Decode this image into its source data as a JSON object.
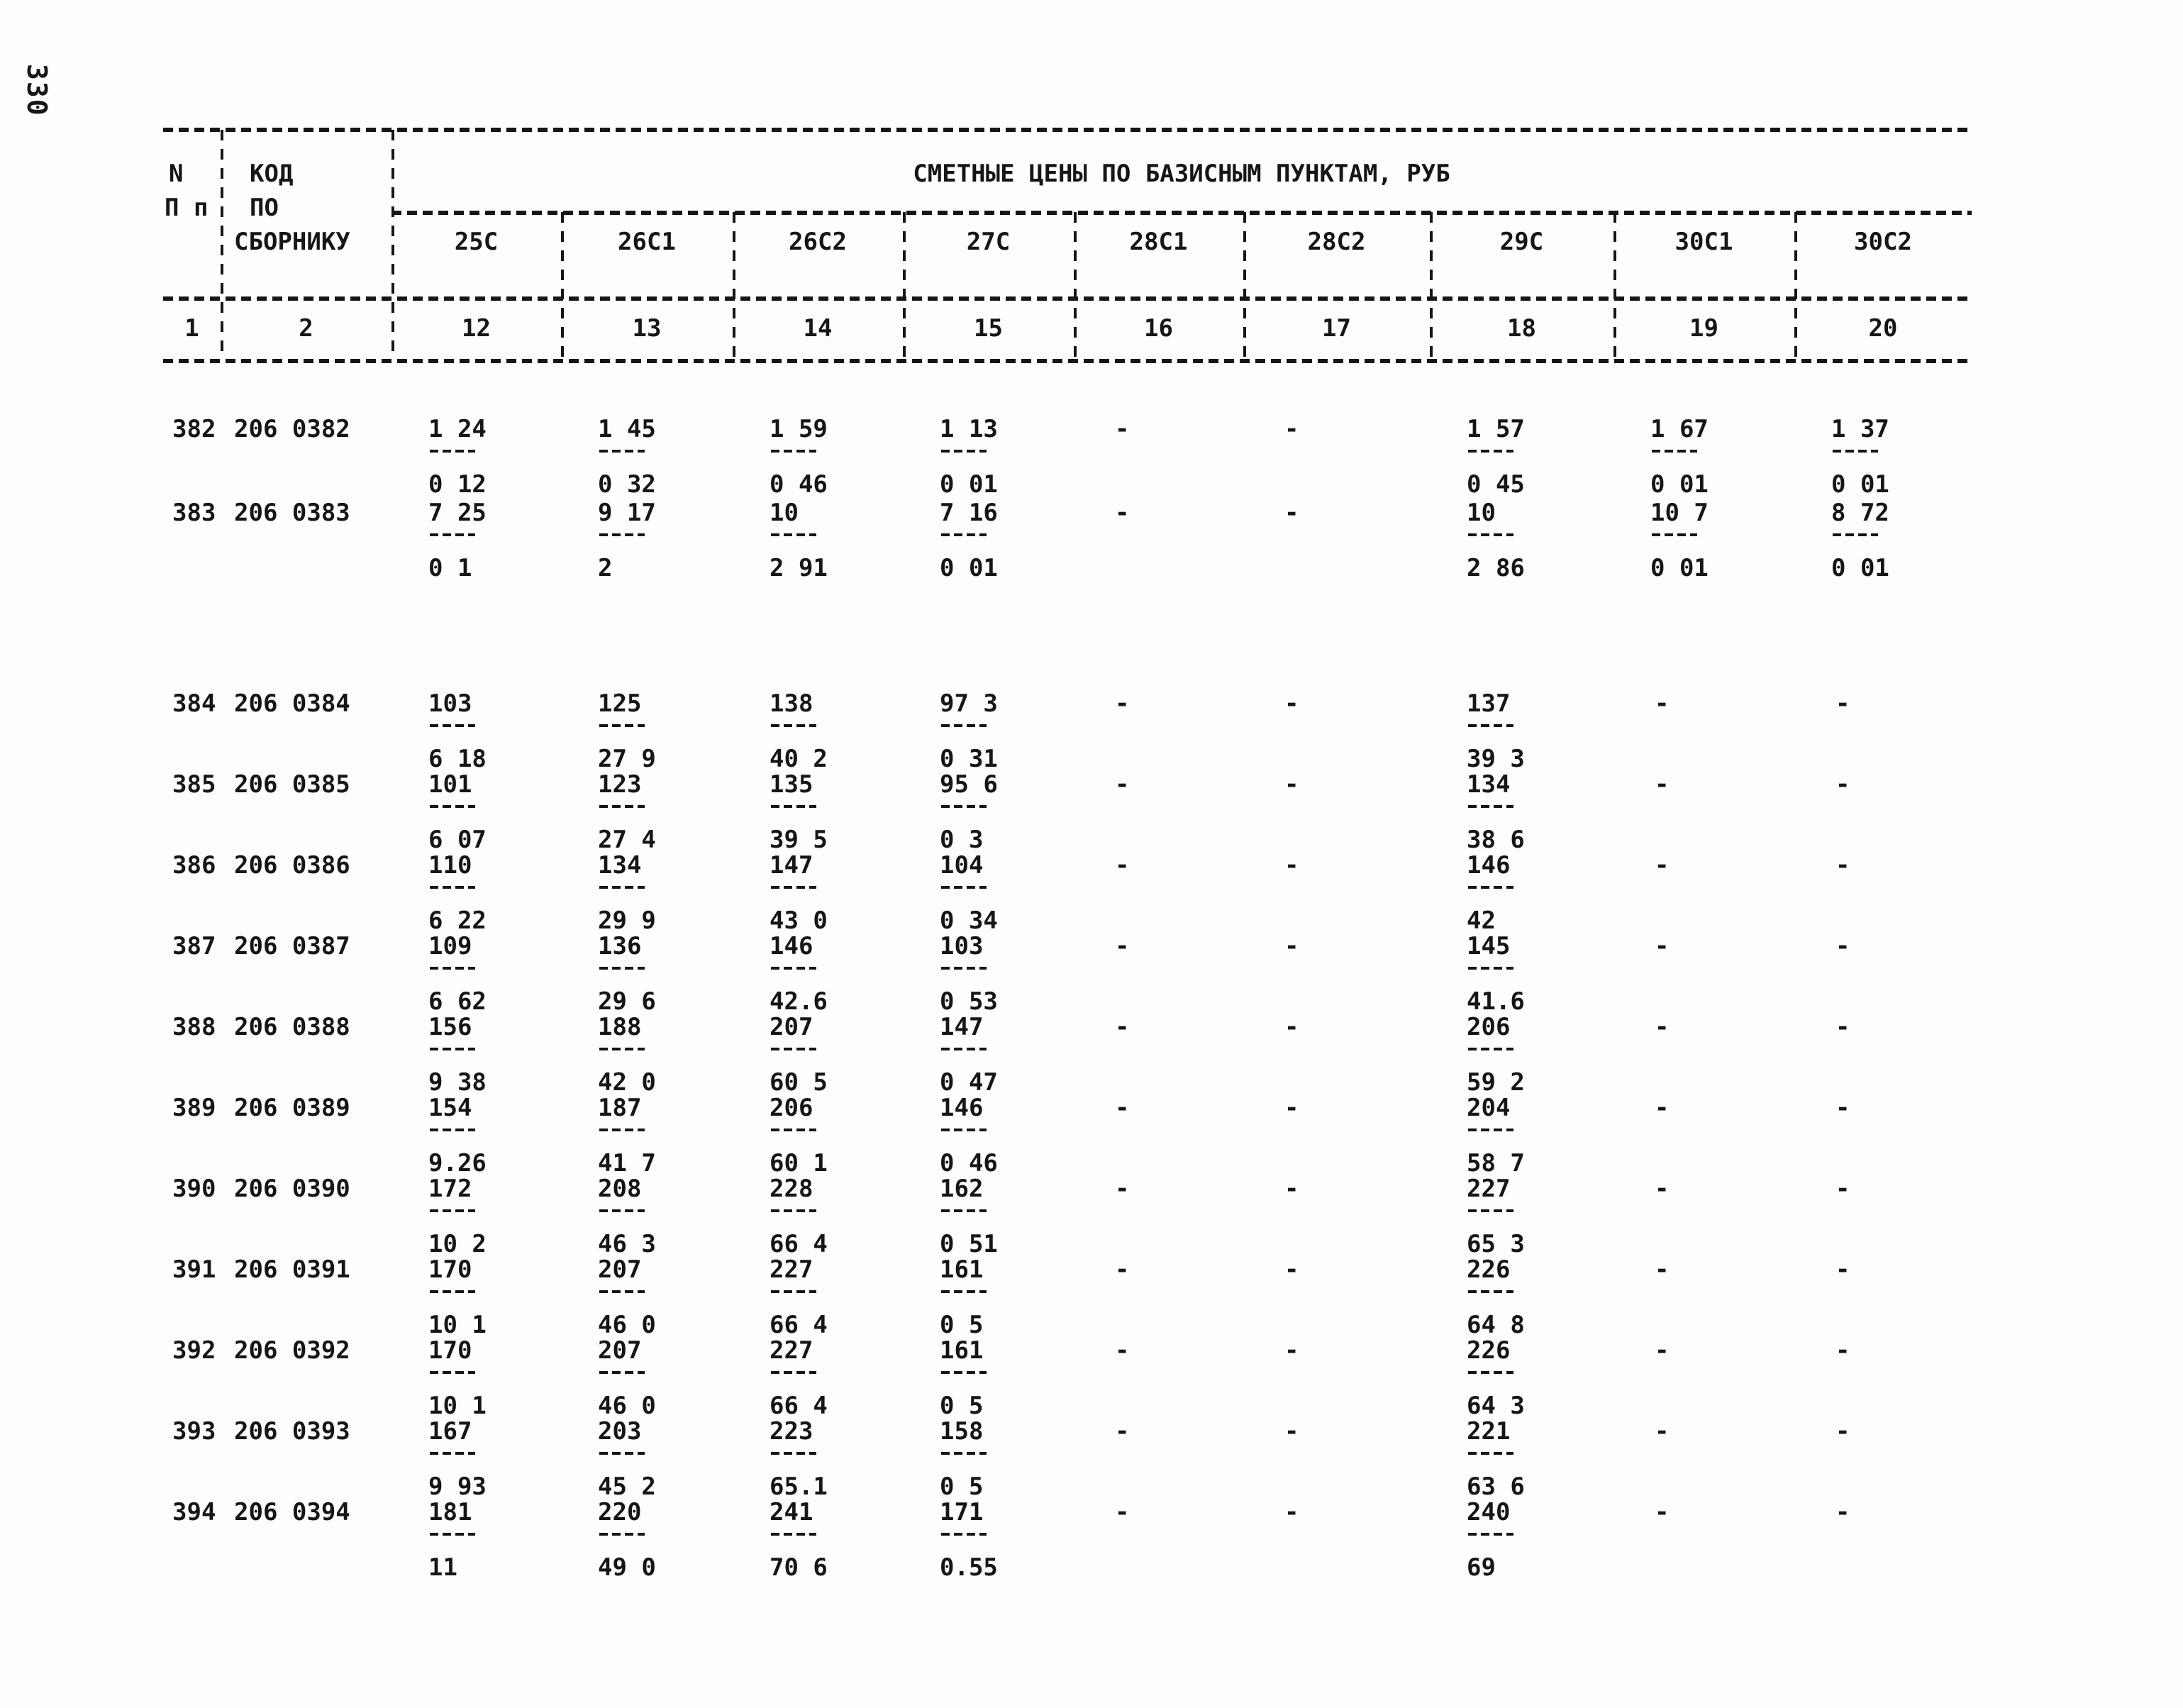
{
  "page": {
    "number": "330",
    "ink": "#161616",
    "paper": "#fdfdfb"
  },
  "table": {
    "title": "СМЕТНЫЕ ЦЕНЫ ПО БАЗИСНЫМ ПУНКТАМ, РУБ",
    "col1_header": {
      "line1": "N",
      "line2": "П п"
    },
    "col2_header": [
      "КОД",
      "ПО",
      "СБОРНИКУ"
    ],
    "column_codes": [
      "25C",
      "26C1",
      "26C2",
      "27C",
      "28C1",
      "28C2",
      "29C",
      "30C1",
      "30C2"
    ],
    "column_numbers": [
      "1",
      "2",
      "12",
      "13",
      "14",
      "15",
      "16",
      "17",
      "18",
      "19",
      "20"
    ],
    "missing_value_mark": "-",
    "rows": [
      {
        "num": "382",
        "code": "206 0382",
        "cells": [
          {
            "top": "1 24",
            "bottom": "0 12"
          },
          {
            "top": "1 45",
            "bottom": "0 32"
          },
          {
            "top": "1 59",
            "bottom": "0 46"
          },
          {
            "top": "1 13",
            "bottom": "0 01"
          },
          {
            "dash": true
          },
          {
            "dash": true
          },
          {
            "top": "1 57",
            "bottom": "0 45"
          },
          {
            "top": "1 67",
            "bottom": "0 01"
          },
          {
            "top": "1 37",
            "bottom": "0 01"
          }
        ]
      },
      {
        "num": "383",
        "code": "206 0383",
        "cells": [
          {
            "top": "7 25",
            "bottom": "0 1"
          },
          {
            "top": "9 17",
            "bottom": "2"
          },
          {
            "top": "10",
            "bottom": "2 91"
          },
          {
            "top": "7 16",
            "bottom": "0 01"
          },
          {
            "dash": true
          },
          {
            "dash": true
          },
          {
            "top": "10",
            "bottom": "2 86"
          },
          {
            "top": "10 7",
            "bottom": "0 01"
          },
          {
            "top": "8 72",
            "bottom": "0 01"
          }
        ]
      },
      {
        "num": "384",
        "code": "206 0384",
        "cells": [
          {
            "top": "103",
            "bottom": "6 18"
          },
          {
            "top": "125",
            "bottom": "27 9"
          },
          {
            "top": "138",
            "bottom": "40 2"
          },
          {
            "top": "97 3",
            "bottom": "0 31"
          },
          {
            "dash": true
          },
          {
            "dash": true
          },
          {
            "top": "137",
            "bottom": "39 3"
          },
          {
            "dash": true
          },
          {
            "dash": true
          }
        ]
      },
      {
        "num": "385",
        "code": "206 0385",
        "cells": [
          {
            "top": "101",
            "bottom": "6 07"
          },
          {
            "top": "123",
            "bottom": "27 4"
          },
          {
            "top": "135",
            "bottom": "39 5"
          },
          {
            "top": "95 6",
            "bottom": "0 3"
          },
          {
            "dash": true
          },
          {
            "dash": true
          },
          {
            "top": "134",
            "bottom": "38 6"
          },
          {
            "dash": true
          },
          {
            "dash": true
          }
        ]
      },
      {
        "num": "386",
        "code": "206 0386",
        "cells": [
          {
            "top": "110",
            "bottom": "6 22"
          },
          {
            "top": "134",
            "bottom": "29 9"
          },
          {
            "top": "147",
            "bottom": "43 0"
          },
          {
            "top": "104",
            "bottom": "0 34"
          },
          {
            "dash": true
          },
          {
            "dash": true
          },
          {
            "top": "146",
            "bottom": "42"
          },
          {
            "dash": true
          },
          {
            "dash": true
          }
        ]
      },
      {
        "num": "387",
        "code": "206 0387",
        "cells": [
          {
            "top": "109",
            "bottom": "6 62"
          },
          {
            "top": "136",
            "bottom": "29 6"
          },
          {
            "top": "146",
            "bottom": "42.6"
          },
          {
            "top": "103",
            "bottom": "0 53"
          },
          {
            "dash": true
          },
          {
            "dash": true
          },
          {
            "top": "145",
            "bottom": "41.6"
          },
          {
            "dash": true
          },
          {
            "dash": true
          }
        ]
      },
      {
        "num": "388",
        "code": "206 0388",
        "cells": [
          {
            "top": "156",
            "bottom": "9 38"
          },
          {
            "top": "188",
            "bottom": "42 0"
          },
          {
            "top": "207",
            "bottom": "60 5"
          },
          {
            "top": "147",
            "bottom": "0 47"
          },
          {
            "dash": true
          },
          {
            "dash": true
          },
          {
            "top": "206",
            "bottom": "59 2"
          },
          {
            "dash": true
          },
          {
            "dash": true
          }
        ]
      },
      {
        "num": "389",
        "code": "206 0389",
        "cells": [
          {
            "top": "154",
            "bottom": "9.26"
          },
          {
            "top": "187",
            "bottom": "41 7"
          },
          {
            "top": "206",
            "bottom": "60 1"
          },
          {
            "top": "146",
            "bottom": "0 46"
          },
          {
            "dash": true
          },
          {
            "dash": true
          },
          {
            "top": "204",
            "bottom": "58 7"
          },
          {
            "dash": true
          },
          {
            "dash": true
          }
        ]
      },
      {
        "num": "390",
        "code": "206 0390",
        "cells": [
          {
            "top": "172",
            "bottom": "10 2"
          },
          {
            "top": "208",
            "bottom": "46 3"
          },
          {
            "top": "228",
            "bottom": "66 4"
          },
          {
            "top": "162",
            "bottom": "0 51"
          },
          {
            "dash": true
          },
          {
            "dash": true
          },
          {
            "top": "227",
            "bottom": "65 3"
          },
          {
            "dash": true
          },
          {
            "dash": true
          }
        ]
      },
      {
        "num": "391",
        "code": "206 0391",
        "cells": [
          {
            "top": "170",
            "bottom": "10 1"
          },
          {
            "top": "207",
            "bottom": "46 0"
          },
          {
            "top": "227",
            "bottom": "66 4"
          },
          {
            "top": "161",
            "bottom": "0 5"
          },
          {
            "dash": true
          },
          {
            "dash": true
          },
          {
            "top": "226",
            "bottom": "64 8"
          },
          {
            "dash": true
          },
          {
            "dash": true
          }
        ]
      },
      {
        "num": "392",
        "code": "206 0392",
        "cells": [
          {
            "top": "170",
            "bottom": "10 1"
          },
          {
            "top": "207",
            "bottom": "46 0"
          },
          {
            "top": "227",
            "bottom": "66 4"
          },
          {
            "top": "161",
            "bottom": "0 5"
          },
          {
            "dash": true
          },
          {
            "dash": true
          },
          {
            "top": "226",
            "bottom": "64 3"
          },
          {
            "dash": true
          },
          {
            "dash": true
          }
        ]
      },
      {
        "num": "393",
        "code": "206 0393",
        "cells": [
          {
            "top": "167",
            "bottom": "9 93"
          },
          {
            "top": "203",
            "bottom": "45 2"
          },
          {
            "top": "223",
            "bottom": "65.1"
          },
          {
            "top": "158",
            "bottom": "0 5"
          },
          {
            "dash": true
          },
          {
            "dash": true
          },
          {
            "top": "221",
            "bottom": "63 6"
          },
          {
            "dash": true
          },
          {
            "dash": true
          }
        ]
      },
      {
        "num": "394",
        "code": "206 0394",
        "cells": [
          {
            "top": "181",
            "bottom": "11"
          },
          {
            "top": "220",
            "bottom": "49 0"
          },
          {
            "top": "241",
            "bottom": "70 6"
          },
          {
            "top": "171",
            "bottom": "0.55"
          },
          {
            "dash": true
          },
          {
            "dash": true
          },
          {
            "top": "240",
            "bottom": "69"
          },
          {
            "dash": true
          },
          {
            "dash": true
          }
        ]
      }
    ]
  }
}
